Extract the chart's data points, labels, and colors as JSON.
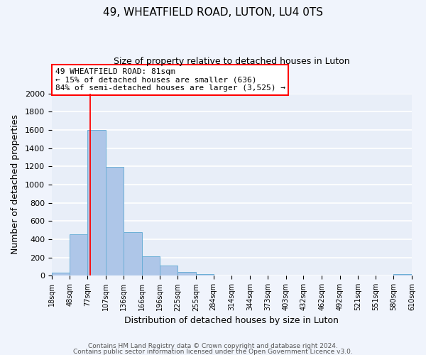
{
  "title": "49, WHEATFIELD ROAD, LUTON, LU4 0TS",
  "subtitle": "Size of property relative to detached houses in Luton",
  "xlabel": "Distribution of detached houses by size in Luton",
  "ylabel": "Number of detached properties",
  "bar_color": "#aec6e8",
  "bar_edgecolor": "#6baed6",
  "background_color": "#e8eef8",
  "fig_background_color": "#f0f4fc",
  "grid_color": "#ffffff",
  "bin_edges": [
    18,
    48,
    77,
    107,
    136,
    166,
    196,
    225,
    255,
    284,
    314,
    344,
    373,
    403,
    432,
    462,
    492,
    521,
    551,
    580,
    610
  ],
  "bar_heights": [
    35,
    455,
    1600,
    1195,
    480,
    210,
    115,
    45,
    20,
    0,
    0,
    0,
    0,
    0,
    0,
    0,
    0,
    0,
    0,
    20
  ],
  "tick_labels": [
    "18sqm",
    "48sqm",
    "77sqm",
    "107sqm",
    "136sqm",
    "166sqm",
    "196sqm",
    "225sqm",
    "255sqm",
    "284sqm",
    "314sqm",
    "344sqm",
    "373sqm",
    "403sqm",
    "432sqm",
    "462sqm",
    "492sqm",
    "521sqm",
    "551sqm",
    "580sqm",
    "610sqm"
  ],
  "ylim": [
    0,
    2000
  ],
  "yticks": [
    0,
    200,
    400,
    600,
    800,
    1000,
    1200,
    1400,
    1600,
    1800,
    2000
  ],
  "redline_x": 81,
  "ann_line1": "49 WHEATFIELD ROAD: 81sqm",
  "ann_line2": "← 15% of detached houses are smaller (636)",
  "ann_line3": "84% of semi-detached houses are larger (3,525) →",
  "footer1": "Contains HM Land Registry data © Crown copyright and database right 2024.",
  "footer2": "Contains public sector information licensed under the Open Government Licence v3.0."
}
